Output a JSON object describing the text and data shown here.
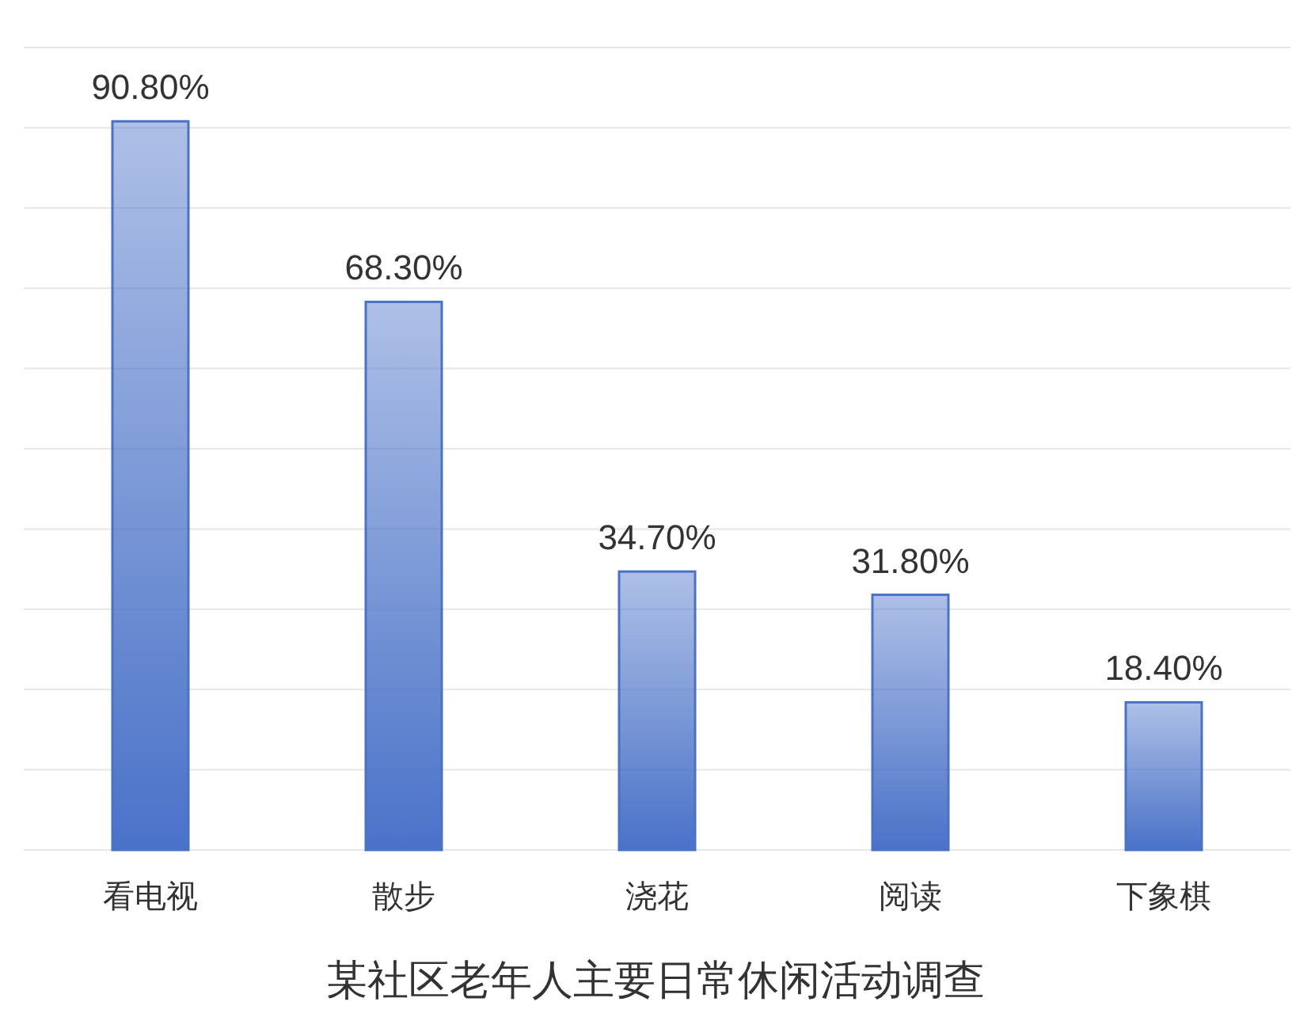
{
  "chart_data": {
    "type": "bar",
    "title": "某社区老年人主要日常休闲活动调查",
    "categories": [
      "看电视",
      "散步",
      "浇花",
      "阅读",
      "下象棋"
    ],
    "values": [
      90.8,
      68.3,
      34.7,
      31.8,
      18.4
    ],
    "value_labels": [
      "90.80%",
      "68.30%",
      "34.70%",
      "31.80%",
      "18.40%"
    ],
    "color": "#4a72c8",
    "ylim": [
      0,
      100
    ],
    "yticks": [
      {
        "value": 0,
        "label": null
      },
      {
        "value": 10,
        "label": null
      },
      {
        "value": 20,
        "label": null
      },
      {
        "value": 30,
        "label": null
      },
      {
        "value": 40,
        "label": null
      },
      {
        "value": 50,
        "label": null
      },
      {
        "value": 60,
        "label": null
      },
      {
        "value": 70,
        "label": null
      },
      {
        "value": 80,
        "label": null
      },
      {
        "value": 90,
        "label": null
      },
      {
        "value": 100,
        "label": null
      }
    ],
    "grid": "y"
  }
}
